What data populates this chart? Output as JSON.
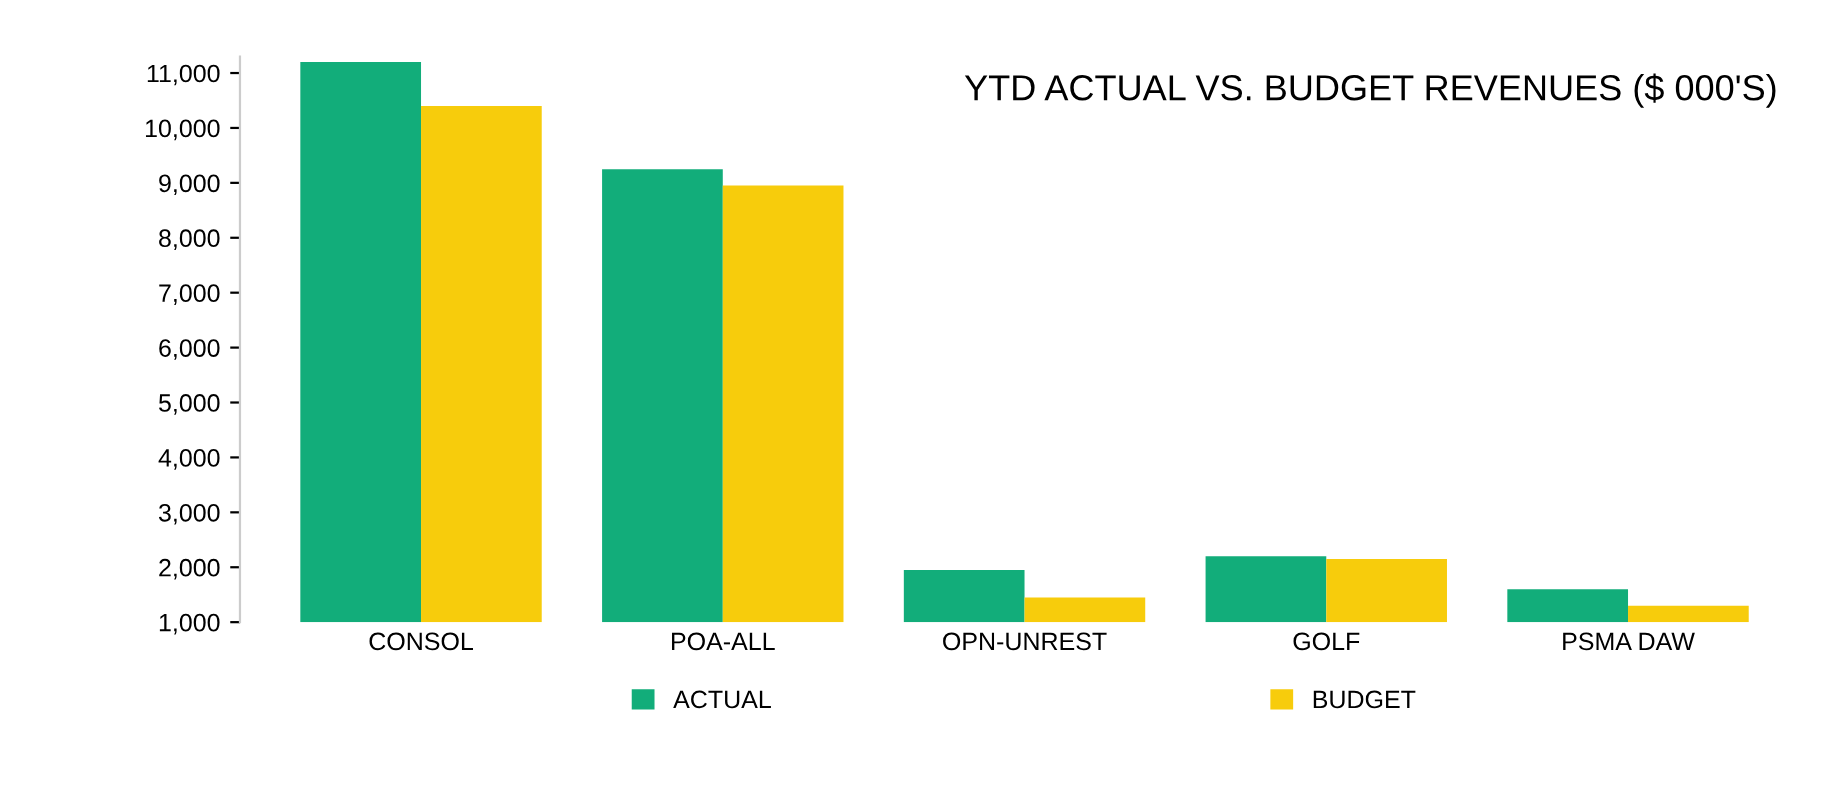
{
  "chart_data": {
    "type": "bar",
    "title": "YTD ACTUAL VS. BUDGET REVENUES ($ 000'S)",
    "categories": [
      "CONSOL",
      "POA-ALL",
      "OPN-UNREST",
      "GOLF",
      "PSMA DAW"
    ],
    "series": [
      {
        "name": "ACTUAL",
        "color": "#12ad7a",
        "values": [
          11200,
          9250,
          1950,
          2200,
          1600
        ]
      },
      {
        "name": "BUDGET",
        "color": "#f7cc0c",
        "values": [
          10400,
          8950,
          1450,
          2150,
          1300
        ]
      }
    ],
    "ylim": [
      1000,
      11300
    ],
    "yticks": [
      {
        "value": 1000,
        "label": "1,000"
      },
      {
        "value": 2000,
        "label": "2,000"
      },
      {
        "value": 3000,
        "label": "3,000"
      },
      {
        "value": 4000,
        "label": "4,000"
      },
      {
        "value": 5000,
        "label": "5,000"
      },
      {
        "value": 6000,
        "label": "6,000"
      },
      {
        "value": 7000,
        "label": "7,000"
      },
      {
        "value": 8000,
        "label": "8,000"
      },
      {
        "value": 9000,
        "label": "9,000"
      },
      {
        "value": 10000,
        "label": "10,000"
      },
      {
        "value": 11000,
        "label": "11,000"
      }
    ],
    "grid": false,
    "legend": "bottom"
  }
}
